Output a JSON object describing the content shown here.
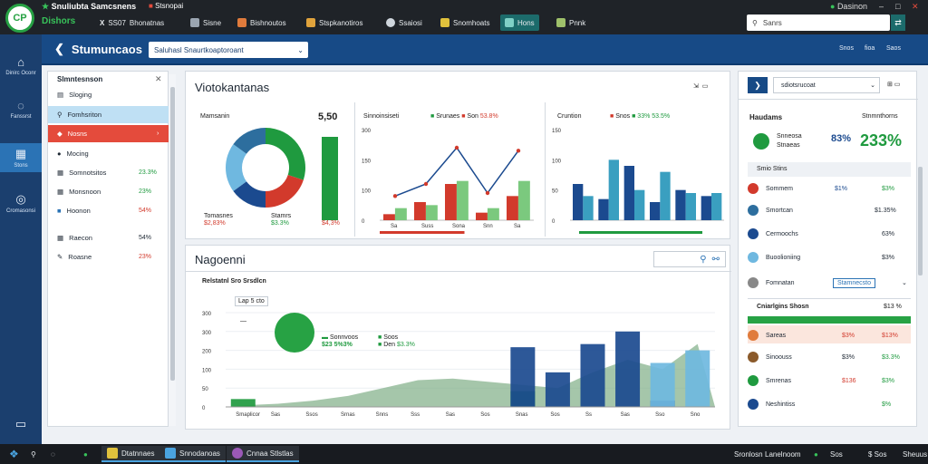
{
  "titlebar": {
    "app_name_1": "Snuliubta",
    "app_name_2": "Samcsnens",
    "app_sub": "Dishors",
    "window_title": "Stsnopai",
    "tabs": [
      {
        "label": "SS07",
        "prefix": "X",
        "suffix": "Bhonatnas",
        "icon": "x-icon"
      },
      {
        "label": "Sisne",
        "icon": "wrench-icon"
      },
      {
        "label": "Bishnoutos",
        "icon": "briefcase-icon"
      },
      {
        "label": "Stspkanotiros",
        "icon": "folder-icon"
      },
      {
        "label": "Ssaiosi",
        "icon": "gear-icon"
      },
      {
        "label": "Snomhoats",
        "icon": "star-icon"
      },
      {
        "label": "Hons",
        "icon": "home-icon"
      },
      {
        "label": "Pnnk",
        "icon": "chart-icon"
      }
    ],
    "search_placeholder": "Sanrs",
    "user_label": "Dasinon",
    "win_controls": [
      "–",
      "□",
      "✕"
    ]
  },
  "sidebar": {
    "items": [
      {
        "label": "Dinirc Oconr",
        "icon": "house-icon"
      },
      {
        "label": "Fanssrst",
        "icon": "chat-icon"
      },
      {
        "label": "Stons",
        "icon": "grid-icon"
      },
      {
        "label": "Cromasonsi",
        "icon": "target-icon"
      },
      {
        "label": "",
        "icon": "monitor-icon"
      }
    ]
  },
  "header": {
    "title": "Stumuncaos",
    "select_value": "Saluhasl Snaurtkoaptoroant",
    "right_items": [
      "Snos",
      "fioa",
      "Saos"
    ]
  },
  "left_panel": {
    "title": "Slmntesnson",
    "items": [
      {
        "label": "Sloging",
        "value": "",
        "state": ""
      },
      {
        "label": "Fomhsriton",
        "value": "",
        "state": "selected"
      },
      {
        "label": "Nosns",
        "value": "",
        "state": "red"
      },
      {
        "label": "Mocing",
        "value": "",
        "state": ""
      },
      {
        "label": "Somnotsitos",
        "value": "23.3%",
        "state": ""
      },
      {
        "label": "Monsnoon",
        "value": "23%",
        "state": ""
      },
      {
        "label": "Hoonon",
        "value": "54%",
        "state": ""
      },
      {
        "label": "Raecon",
        "value": "54%",
        "state": ""
      },
      {
        "label": "Roasne",
        "value": "23%",
        "state": ""
      }
    ]
  },
  "overview": {
    "title": "Viotokantanas",
    "donut": {
      "label": "Mamsanin",
      "value": "5,50",
      "sub1": "Tomasnes",
      "sub2": "Stamrs",
      "val1": "$2,83%",
      "val2": "$3.3%",
      "val3": "$4,3%"
    },
    "line_panel": {
      "title": "Sinnoinsiseti",
      "legend": [
        "Srunaes",
        "Son",
        "53.8%"
      ],
      "yticks": [
        "300",
        "150",
        "100",
        "0"
      ],
      "xticks": [
        "Sa",
        "Suss",
        "Sona",
        "Snn",
        "Sa"
      ]
    },
    "bar_panel": {
      "title": "Cruntion",
      "legend": [
        "Snos",
        "33%",
        "53.5%"
      ],
      "yticks": [
        "150",
        "100",
        "50",
        "0"
      ]
    }
  },
  "chart_data": [
    {
      "type": "pie",
      "title": "Mamsanin",
      "values": [
        30,
        20,
        15,
        20,
        15
      ],
      "colors": [
        "#1f9a3f",
        "#d23a2c",
        "#1b4a8f",
        "#6fb8e0",
        "#2d6e9e"
      ]
    },
    {
      "type": "bar",
      "title": "Sinnoinsiseti",
      "categories": [
        "Sa",
        "Suss",
        "Sona",
        "Snn",
        "Sa"
      ],
      "series": [
        {
          "values": [
            20,
            60,
            120,
            25,
            80
          ],
          "color": "#d23a2c"
        },
        {
          "values": [
            40,
            50,
            130,
            40,
            130
          ],
          "color": "#7bc97e"
        }
      ],
      "line": [
        80,
        120,
        240,
        90,
        230
      ],
      "ylim": [
        0,
        300
      ]
    },
    {
      "type": "bar",
      "title": "Cruntion",
      "series": [
        {
          "values": [
            60,
            35,
            90,
            30,
            50,
            40
          ],
          "color": "#1b4a8f"
        },
        {
          "values": [
            40,
            100,
            50,
            80,
            45,
            45
          ],
          "color": "#3a9fc0"
        }
      ],
      "ylim": [
        0,
        150
      ]
    },
    {
      "type": "bar",
      "title": "Nagoenni",
      "categories": [
        "Sas",
        "Sas",
        "Ssos",
        "Srnas",
        "Snns",
        "Sss",
        "Sas",
        "Sos",
        "Snas",
        "Sos",
        "Ss",
        "Sas",
        "Sso",
        "Sno"
      ],
      "series": [
        {
          "values": [
            25,
            0,
            0,
            0,
            0,
            0,
            0,
            0,
            50,
            0,
            0,
            0,
            0,
            0
          ],
          "color": "#1f9a3f"
        },
        {
          "values": [
            0,
            0,
            0,
            0,
            0,
            0,
            0,
            0,
            190,
            110,
            200,
            240,
            20,
            0
          ],
          "color": "#1b4a8f"
        },
        {
          "values": [
            0,
            0,
            0,
            0,
            0,
            0,
            0,
            0,
            0,
            0,
            0,
            0,
            140,
            180
          ],
          "color": "#6fb8e0"
        }
      ],
      "area": [
        5,
        10,
        20,
        35,
        60,
        85,
        90,
        80,
        70,
        60,
        110,
        150,
        120,
        200
      ],
      "ylim": [
        0,
        300
      ]
    }
  ],
  "sales": {
    "title": "Nagoenni",
    "subtitle": "Relstatnl Sro Srsdlcn",
    "value_box": "Lap 5 cto",
    "yticks": [
      "300",
      "300",
      "200",
      "100",
      "50",
      "0"
    ],
    "xticks": [
      "Smaplicor",
      "Sas",
      "Ssos",
      "Srnas",
      "Snns",
      "Sss",
      "Sas",
      "Sos",
      "Snas",
      "Sos",
      "Ss",
      "Sas",
      "Sso",
      "Sno"
    ],
    "legend": [
      {
        "label": "Sonnvoos",
        "value": "$23 5%3%"
      },
      {
        "label": "Soos",
        "value": ""
      },
      {
        "label": "Den",
        "value": "$3.3%"
      }
    ],
    "tools": [
      "wand-icon",
      "link-icon"
    ]
  },
  "right_panel": {
    "select_value": "sdiotsrucoat",
    "title": "Haudams",
    "col_title": "Stnmnthorns",
    "kpi": {
      "label": "Snneosa",
      "sub": "Stnaeas",
      "pct": "83%",
      "big": "233%"
    },
    "section": "Smio Stins",
    "rows": [
      {
        "label": "Sommem",
        "c1": "$1%",
        "c2": "$3%",
        "color": "#d23a2c"
      },
      {
        "label": "Smortcan",
        "c1": "",
        "c2": "$1.35%",
        "color": "#2d6e9e"
      },
      {
        "label": "Cermoochs",
        "c1": "",
        "c2": "63%",
        "color": "#1b4a8f"
      },
      {
        "label": "Buoolioniing",
        "c1": "",
        "c2": "$3%",
        "color": "#6fb8e0"
      },
      {
        "label": "Fomnatan",
        "c1": "Stamnecsto",
        "c2": "",
        "color": "#888"
      }
    ],
    "section2": "Cniarlgins Shosn",
    "section2_val": "$13 %",
    "rows2": [
      {
        "label": "Sareas",
        "c1": "$3%",
        "c2": "$13%",
        "color": "#e07b3c"
      },
      {
        "label": "Sinoouss",
        "c1": "$3%",
        "c2": "$3.3%",
        "color": "#8b5a2b"
      },
      {
        "label": "Smrenas",
        "c1": "$136",
        "c2": "$3%",
        "color": "#1f9a3f"
      },
      {
        "label": "Neshintiss",
        "c1": "",
        "c2": "$%",
        "color": "#1b4a8f"
      }
    ]
  },
  "taskbar": {
    "items": [
      {
        "label": "Dtatnnaes",
        "icon": "folder-icon"
      },
      {
        "label": "Snnodanoas",
        "icon": "window-icon"
      },
      {
        "label": "Cnnaa Stlstlas",
        "icon": "circle-icon"
      }
    ],
    "tray": [
      "Sronlosn",
      "Lanelnoom",
      "Sos",
      "Sheuus"
    ],
    "clock": "$ Sos"
  }
}
